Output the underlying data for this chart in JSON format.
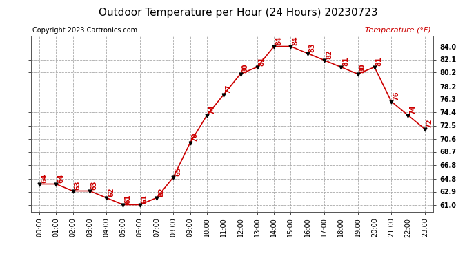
{
  "title": "Outdoor Temperature per Hour (24 Hours) 20230723",
  "copyright": "Copyright 2023 Cartronics.com",
  "legend_label": "Temperature (°F)",
  "hours": [
    "00:00",
    "01:00",
    "02:00",
    "03:00",
    "04:00",
    "05:00",
    "06:00",
    "07:00",
    "08:00",
    "09:00",
    "10:00",
    "11:00",
    "12:00",
    "13:00",
    "14:00",
    "15:00",
    "16:00",
    "17:00",
    "18:00",
    "19:00",
    "20:00",
    "21:00",
    "22:00",
    "23:00"
  ],
  "temperatures": [
    64,
    64,
    63,
    63,
    62,
    61,
    61,
    62,
    65,
    70,
    74,
    77,
    80,
    81,
    84,
    84,
    83,
    82,
    81,
    80,
    81,
    76,
    74,
    72
  ],
  "line_color": "#cc0000",
  "marker_color": "#000000",
  "grid_color": "#aaaaaa",
  "bg_color": "#ffffff",
  "title_fontsize": 11,
  "copyright_fontsize": 7,
  "legend_fontsize": 8,
  "annotation_fontsize": 7,
  "tick_fontsize": 7,
  "y_ticks": [
    61.0,
    62.9,
    64.8,
    66.8,
    68.7,
    70.6,
    72.5,
    74.4,
    76.3,
    78.2,
    80.2,
    82.1,
    84.0
  ],
  "ylim": [
    60.0,
    85.5
  ],
  "xlim": [
    -0.5,
    23.5
  ]
}
